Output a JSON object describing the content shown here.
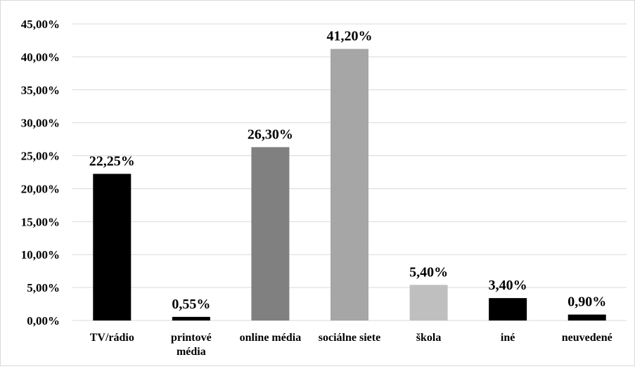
{
  "chart_data": {
    "type": "bar",
    "categories": [
      [
        "TV/rádio"
      ],
      [
        "printové",
        "média"
      ],
      [
        "online média"
      ],
      [
        "sociálne siete"
      ],
      [
        "škola"
      ],
      [
        "iné"
      ],
      [
        "neuvedené"
      ]
    ],
    "values": [
      22.25,
      0.55,
      26.3,
      41.2,
      5.4,
      3.4,
      0.9
    ],
    "data_labels": [
      "22,25%",
      "0,55%",
      "26,30%",
      "41,20%",
      "5,40%",
      "3,40%",
      "0,90%"
    ],
    "bar_colors": [
      "#000000",
      "#000000",
      "#808080",
      "#a6a6a6",
      "#bfbfbf",
      "#000000",
      "#000000"
    ],
    "y_ticks": [
      "0,00%",
      "5,00%",
      "10,00%",
      "15,00%",
      "20,00%",
      "25,00%",
      "30,00%",
      "35,00%",
      "40,00%",
      "45,00%"
    ],
    "ylim": [
      0,
      45
    ],
    "grid": true,
    "title": "",
    "xlabel": "",
    "ylabel": ""
  }
}
